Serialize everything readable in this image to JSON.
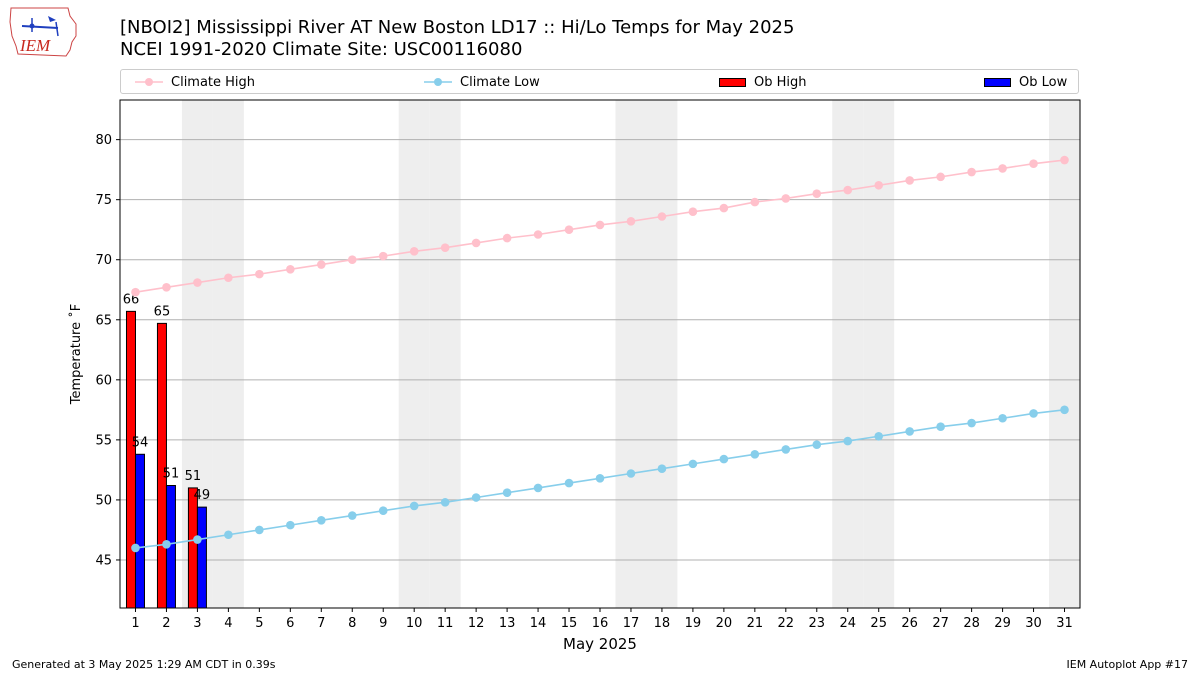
{
  "title_line1": "[NBOI2] Mississippi River  AT New Boston LD17 :: Hi/Lo Temps for May 2025",
  "title_line2": "NCEI 1991-2020 Climate Site: USC00116080",
  "logo_text": "IEM",
  "footer_left": "Generated at 3 May 2025 1:29 AM CDT in 0.39s",
  "footer_right": "IEM Autoplot App #17",
  "colors": {
    "climate_high": "#ffc0cb",
    "climate_low": "#87ceeb",
    "ob_high": "#ff0000",
    "ob_low": "#0000ff",
    "weekend_shade": "#eeeeee",
    "grid": "#b0b0b0"
  },
  "chart_data": {
    "type": "bar",
    "xlabel": "May 2025",
    "ylabel": "Temperature ˚F",
    "xlim": [
      0.5,
      31.5
    ],
    "ylim": [
      41,
      83.3
    ],
    "yticks": [
      45,
      50,
      55,
      60,
      65,
      70,
      75,
      80
    ],
    "x": [
      1,
      2,
      3,
      4,
      5,
      6,
      7,
      8,
      9,
      10,
      11,
      12,
      13,
      14,
      15,
      16,
      17,
      18,
      19,
      20,
      21,
      22,
      23,
      24,
      25,
      26,
      27,
      28,
      29,
      30,
      31
    ],
    "weekend_days": [
      3,
      4,
      10,
      11,
      17,
      18,
      24,
      25,
      31
    ],
    "grid": "horizontal",
    "legend_position": "top",
    "series": [
      {
        "name": "Climate High",
        "kind": "line",
        "values": [
          67.3,
          67.7,
          68.1,
          68.5,
          68.8,
          69.2,
          69.6,
          70.0,
          70.3,
          70.7,
          71.0,
          71.4,
          71.8,
          72.1,
          72.5,
          72.9,
          73.2,
          73.6,
          74.0,
          74.3,
          74.8,
          75.1,
          75.5,
          75.8,
          76.2,
          76.6,
          76.9,
          77.3,
          77.6,
          78.0,
          78.3
        ]
      },
      {
        "name": "Climate Low",
        "kind": "line",
        "values": [
          46.0,
          46.3,
          46.7,
          47.1,
          47.5,
          47.9,
          48.3,
          48.7,
          49.1,
          49.5,
          49.8,
          50.2,
          50.6,
          51.0,
          51.4,
          51.8,
          52.2,
          52.6,
          53.0,
          53.4,
          53.8,
          54.2,
          54.6,
          54.9,
          55.3,
          55.7,
          56.1,
          56.4,
          56.8,
          57.2,
          57.5
        ]
      },
      {
        "name": "Ob High",
        "kind": "bar",
        "x": [
          1,
          2,
          3
        ],
        "values": [
          65.7,
          64.7,
          51.0
        ],
        "labels": [
          "66",
          "65",
          "51"
        ]
      },
      {
        "name": "Ob Low",
        "kind": "bar",
        "x": [
          1,
          2,
          3
        ],
        "values": [
          53.8,
          51.2,
          49.4
        ],
        "labels": [
          "54",
          "51",
          "49"
        ]
      }
    ]
  }
}
